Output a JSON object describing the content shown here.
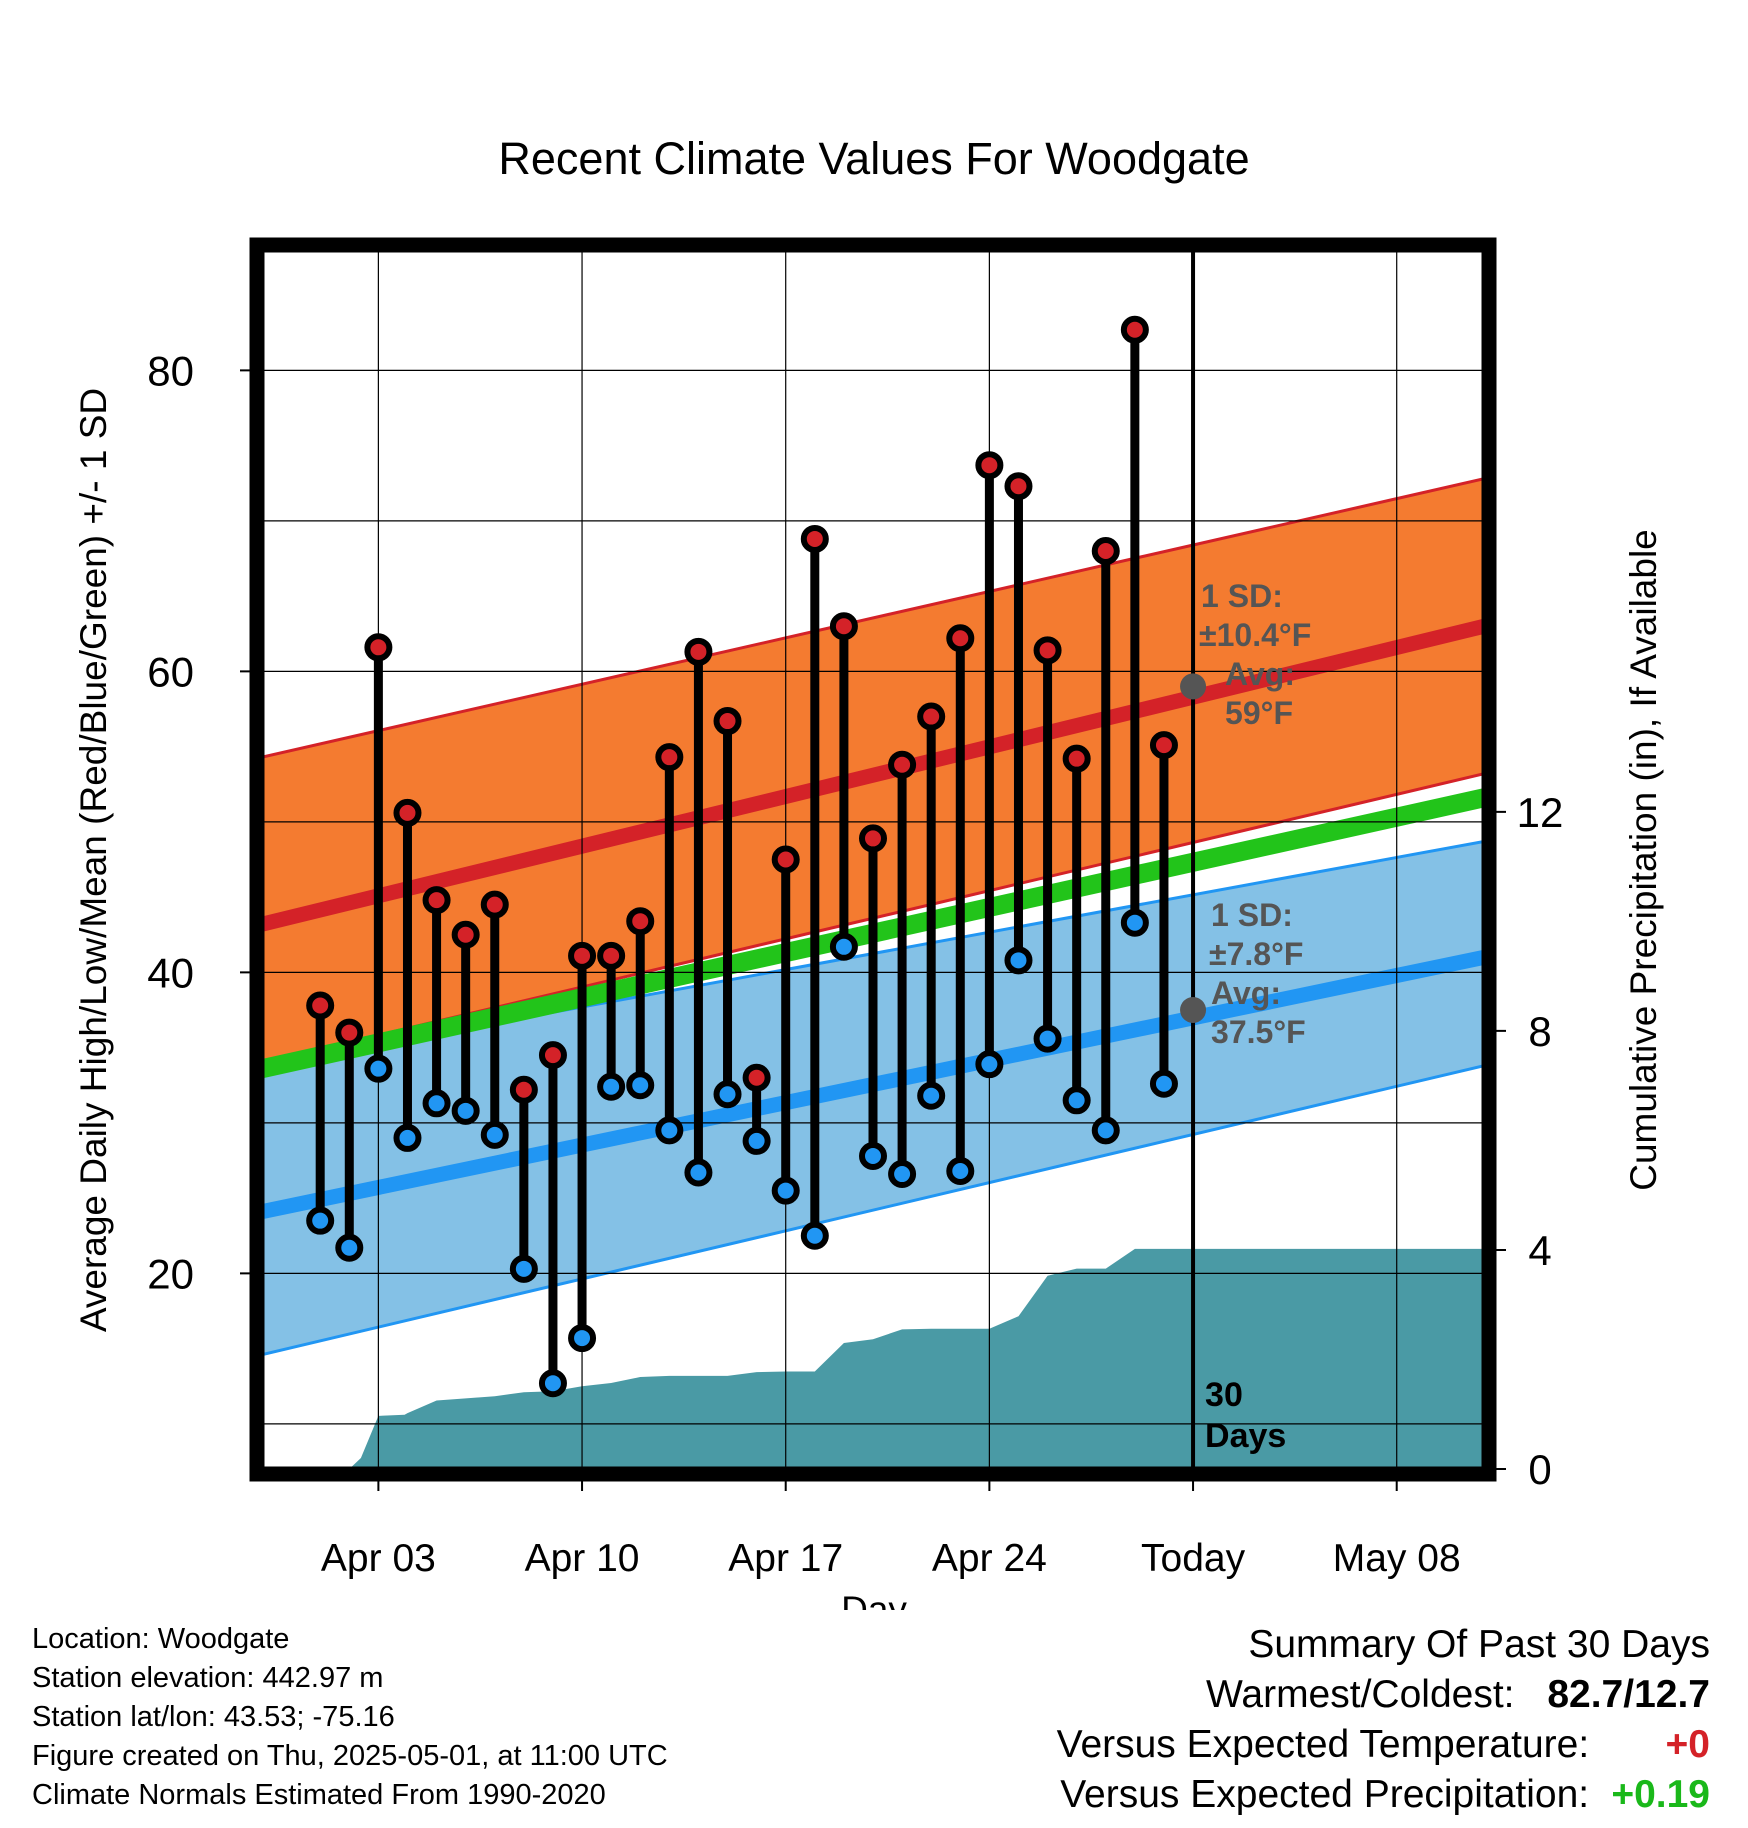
{
  "chart_data": {
    "type": "line",
    "title": "Recent Climate Values For Woodgate",
    "xlabel": "Day",
    "ylabel": "Average Daily High/Low/Mean (Red/Blue/Green) +/- 1 SD",
    "y2label": "Cumulative Precipitation (in), If Available",
    "x_range_days": [
      -1,
      41
    ],
    "ylim": [
      7,
      88
    ],
    "y_ticks": [
      20,
      40,
      60,
      80
    ],
    "y_minor_ticks": [
      10,
      30,
      50,
      70
    ],
    "y2lim": [
      0,
      22.26
    ],
    "y2_ticks": [
      0,
      4,
      8,
      12
    ],
    "x_ticks": [
      {
        "day": 3,
        "label": "Apr 03"
      },
      {
        "day": 10,
        "label": "Apr 10"
      },
      {
        "day": 17,
        "label": "Apr 17"
      },
      {
        "day": 24,
        "label": "Apr 24"
      },
      {
        "day": 31,
        "label": "Today"
      },
      {
        "day": 38,
        "label": "May 08"
      }
    ],
    "today_day": 31,
    "today_label": "30 Days",
    "grid": true,
    "normals": {
      "day": [
        -1,
        41
      ],
      "high_mean": [
        43.2,
        63.0
      ],
      "high_upper": [
        54.3,
        72.8
      ],
      "high_lower": [
        34.0,
        53.2
      ],
      "mean": [
        33.6,
        51.6
      ],
      "low_mean": [
        24.1,
        41.0
      ],
      "low_upper": [
        33.8,
        48.7
      ],
      "low_lower": [
        14.6,
        33.8
      ]
    },
    "high_sd_label": [
      "1 SD:",
      "±10.4°F",
      "Avg:",
      "59°F"
    ],
    "low_sd_label": [
      "1 SD:",
      "±7.8°F",
      "Avg:",
      "37.5°F"
    ],
    "today_high_avg": 59,
    "today_low_avg": 37.5,
    "observed": {
      "day": [
        1,
        2,
        3,
        4,
        5,
        6,
        7,
        8,
        9,
        10,
        11,
        12,
        13,
        14,
        15,
        16,
        17,
        18,
        19,
        20,
        21,
        22,
        23,
        24,
        25,
        26,
        27,
        28,
        29,
        30
      ],
      "high": [
        37.8,
        36.0,
        61.6,
        50.6,
        44.8,
        42.5,
        44.5,
        32.2,
        34.5,
        41.1,
        41.1,
        43.4,
        54.3,
        61.3,
        56.7,
        33.0,
        47.5,
        68.8,
        63.0,
        48.9,
        53.8,
        57.0,
        62.2,
        73.7,
        72.3,
        61.4,
        54.2,
        68.0,
        82.7,
        55.1
      ],
      "low": [
        23.5,
        21.7,
        33.6,
        29.0,
        31.3,
        30.8,
        29.2,
        20.3,
        12.7,
        15.7,
        32.4,
        32.5,
        29.5,
        26.7,
        31.9,
        28.8,
        25.5,
        22.5,
        41.7,
        27.8,
        26.6,
        31.8,
        26.8,
        33.9,
        40.8,
        35.6,
        31.5,
        29.5,
        43.3,
        32.6
      ]
    },
    "precip": {
      "day": [
        1,
        1.6,
        2,
        2.4,
        3,
        3.9,
        4,
        5,
        6,
        7,
        8,
        9,
        10,
        11,
        12,
        13,
        14,
        15,
        16,
        17,
        18,
        19,
        20,
        21,
        22,
        23,
        24,
        25,
        26,
        27,
        28,
        29,
        30,
        31,
        41
      ],
      "cumulative": [
        0,
        0,
        0,
        0.2,
        0.97,
        0.99,
        1.02,
        1.25,
        1.29,
        1.33,
        1.4,
        1.42,
        1.51,
        1.57,
        1.68,
        1.7,
        1.7,
        1.7,
        1.77,
        1.78,
        1.78,
        2.3,
        2.37,
        2.55,
        2.56,
        2.56,
        2.56,
        2.79,
        3.53,
        3.66,
        3.66,
        4.02,
        4.02,
        4.02,
        4.02
      ]
    },
    "colors": {
      "high_band": "#f47b30",
      "high_line": "#d42228",
      "low_band": "#84c1e6",
      "low_line": "#2196f3",
      "mean_line": "#22c41a",
      "precip": "#4a9aa5",
      "high_dot": "#d42228",
      "low_dot": "#2196f3",
      "sd_text": "#555555",
      "today_dot": "#555555"
    }
  },
  "footer": {
    "location": "Location: Woodgate",
    "elevation": "Station elevation: 442.97 m",
    "latlon": "Station lat/lon: 43.53; -75.16",
    "created": "Figure created on Thu, 2025-05-01, at 11:00 UTC",
    "normals": "Climate Normals Estimated From 1990-2020"
  },
  "summary": {
    "title": "Summary Of Past 30 Days",
    "warmest_label": "Warmest/Coldest:",
    "warmest_value": "82.7/12.7",
    "temp_label": "Versus Expected Temperature:",
    "temp_value": "+0",
    "temp_color": "#d42228",
    "precip_label": "Versus Expected Precipitation:",
    "precip_value": "+0.19",
    "precip_color": "#1ab81a"
  }
}
